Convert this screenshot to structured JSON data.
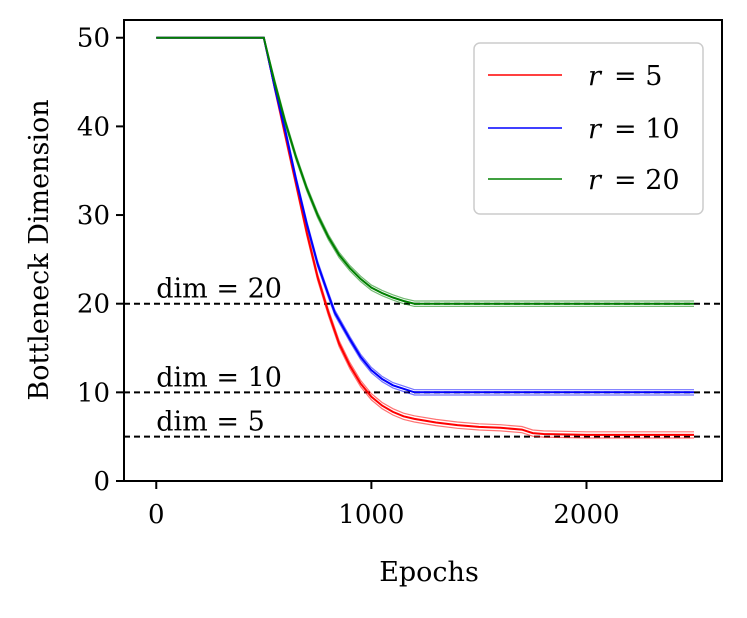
{
  "chart_data": {
    "type": "line",
    "xlabel": "Epochs",
    "ylabel": "Bottleneck Dimension",
    "xlim": [
      -150,
      2630
    ],
    "ylim": [
      0,
      52
    ],
    "xticks": [
      0,
      1000,
      2000
    ],
    "yticks": [
      0,
      10,
      20,
      30,
      40,
      50
    ],
    "x_tick_labels": [
      "0",
      "1000",
      "2000"
    ],
    "y_tick_labels": [
      "0",
      "10",
      "20",
      "30",
      "40",
      "50"
    ],
    "grid": false,
    "legend_position": "top-right",
    "hlines": [
      {
        "y": 20,
        "label": "dim = 20",
        "style": "dashed",
        "color": "#000000"
      },
      {
        "y": 10,
        "label": "dim = 10",
        "style": "dashed",
        "color": "#000000"
      },
      {
        "y": 5,
        "label": "dim = 5",
        "style": "dashed",
        "color": "#000000"
      }
    ],
    "series": [
      {
        "name": "r = 5",
        "legend_var": "r",
        "legend_value": "= 5",
        "color": "#ff0000",
        "x": [
          0,
          500,
          550,
          600,
          650,
          700,
          750,
          800,
          850,
          900,
          950,
          1000,
          1050,
          1100,
          1150,
          1200,
          1300,
          1400,
          1500,
          1600,
          1700,
          1750,
          1800,
          2000,
          2200,
          2500
        ],
        "y": [
          50,
          50,
          44.5,
          39,
          33.5,
          28,
          23,
          19,
          15.5,
          13,
          11,
          9.5,
          8.5,
          7.8,
          7.3,
          7,
          6.6,
          6.3,
          6.1,
          6,
          5.8,
          5.4,
          5.3,
          5.2,
          5.2,
          5.2
        ],
        "band": 0.35
      },
      {
        "name": "r = 10",
        "legend_var": "r",
        "legend_value": "= 10",
        "color": "#0000ff",
        "x": [
          0,
          500,
          550,
          600,
          650,
          700,
          750,
          800,
          830,
          900,
          950,
          1000,
          1050,
          1100,
          1150,
          1200,
          1400,
          2000,
          2500
        ],
        "y": [
          50,
          50,
          44.5,
          39.5,
          34,
          29,
          24.5,
          21,
          19,
          16,
          14,
          12.5,
          11.5,
          10.8,
          10.4,
          10,
          10,
          10,
          10
        ],
        "band": 0.3
      },
      {
        "name": "r = 20",
        "legend_var": "r",
        "legend_value": "= 20",
        "color": "#008000",
        "x": [
          0,
          500,
          550,
          600,
          650,
          700,
          750,
          800,
          850,
          900,
          950,
          1000,
          1050,
          1100,
          1150,
          1200,
          1400,
          2000,
          2500
        ],
        "y": [
          50,
          50,
          45,
          40.5,
          36.5,
          33,
          30,
          27.5,
          25.5,
          24,
          22.8,
          21.8,
          21.2,
          20.7,
          20.3,
          20,
          20,
          20,
          20
        ],
        "band": 0.3
      }
    ]
  }
}
